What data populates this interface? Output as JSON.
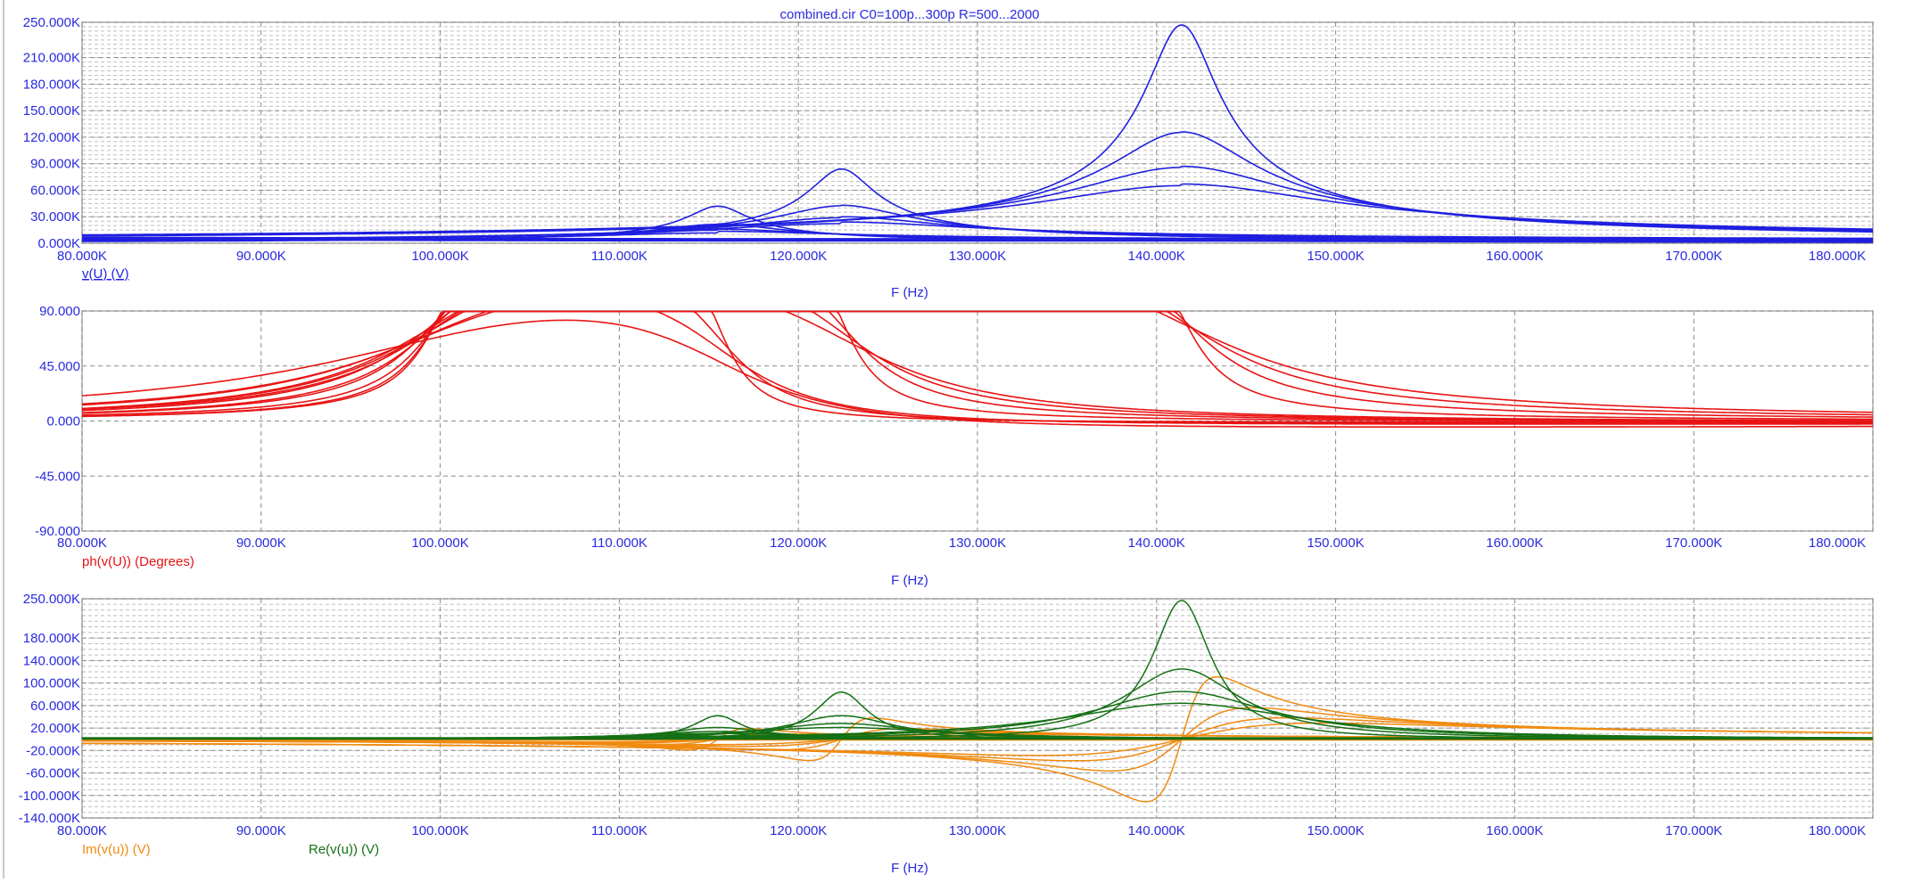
{
  "title": "combined.cir C0=100p...300p R=500...2000",
  "xlabel": "F (Hz)",
  "colors": {
    "magnitude": "#1f1fe0",
    "phase": "#e81414",
    "real": "#157015",
    "imag": "#f08a10",
    "axis_text": "#2a2adf",
    "grid": "#8a8a8a",
    "frame": "#b0b0b0"
  },
  "chart_data": [
    {
      "type": "line",
      "id": "magnitude",
      "ylabel": "v(U) (V)",
      "xlim": [
        80000,
        180000
      ],
      "ylim": [
        0,
        250000
      ],
      "x_ticks": [
        80000,
        90000,
        100000,
        110000,
        120000,
        130000,
        140000,
        150000,
        160000,
        170000,
        180000
      ],
      "x_tick_labels": [
        "80.000K",
        "90.000K",
        "100.000K",
        "110.000K",
        "120.000K",
        "130.000K",
        "140.000K",
        "150.000K",
        "160.000K",
        "170.000K",
        "180.000K"
      ],
      "y_ticks": [
        0,
        30000,
        60000,
        90000,
        120000,
        150000,
        180000,
        210000,
        250000
      ],
      "y_tick_labels": [
        "0.000K",
        "30.000K",
        "60.000K",
        "90.000K",
        "120.000K",
        "150.000K",
        "180.000K",
        "210.000K",
        "250.000K"
      ],
      "minor_y_step": 5000,
      "series_note": "resonance curves from parameter sweep",
      "resonances": [
        {
          "f0": 141400,
          "peak": 247000,
          "width": 2000
        },
        {
          "f0": 141400,
          "peak": 125000,
          "width": 4000
        },
        {
          "f0": 141400,
          "peak": 85000,
          "width": 6000
        },
        {
          "f0": 141400,
          "peak": 64000,
          "width": 8000
        },
        {
          "f0": 122400,
          "peak": 84000,
          "width": 1800
        },
        {
          "f0": 122400,
          "peak": 42000,
          "width": 3600
        },
        {
          "f0": 122400,
          "peak": 28000,
          "width": 5400
        },
        {
          "f0": 122400,
          "peak": 21000,
          "width": 7200
        },
        {
          "f0": 115500,
          "peak": 42000,
          "width": 1700
        },
        {
          "f0": 115500,
          "peak": 21000,
          "width": 3400
        },
        {
          "f0": 115500,
          "peak": 14000,
          "width": 5100
        },
        {
          "f0": 115500,
          "peak": 10500,
          "width": 6800
        }
      ]
    },
    {
      "type": "line",
      "id": "phase",
      "ylabel": "ph(v(U)) (Degrees)",
      "xlim": [
        80000,
        180000
      ],
      "ylim": [
        -90,
        90
      ],
      "x_ticks": [
        80000,
        90000,
        100000,
        110000,
        120000,
        130000,
        140000,
        150000,
        160000,
        170000,
        180000
      ],
      "x_tick_labels": [
        "80.000K",
        "90.000K",
        "100.000K",
        "110.000K",
        "120.000K",
        "130.000K",
        "140.000K",
        "150.000K",
        "160.000K",
        "170.000K",
        "180.000K"
      ],
      "y_ticks": [
        -90,
        -45,
        0,
        45,
        90
      ],
      "y_tick_labels": [
        "-90.000",
        "-45.000",
        "0.000",
        "45.000",
        "90.000"
      ],
      "series": [
        {
          "f0": 141400,
          "q": 35,
          "fa": 100000,
          "qa": 25
        },
        {
          "f0": 141400,
          "q": 18,
          "fa": 100000,
          "qa": 14
        },
        {
          "f0": 141400,
          "q": 12,
          "fa": 100000,
          "qa": 10
        },
        {
          "f0": 141400,
          "q": 9,
          "fa": 100000,
          "qa": 8
        },
        {
          "f0": 122400,
          "q": 35,
          "fa": 100000,
          "qa": 22
        },
        {
          "f0": 122400,
          "q": 18,
          "fa": 100000,
          "qa": 12
        },
        {
          "f0": 122400,
          "q": 12,
          "fa": 100000,
          "qa": 8
        },
        {
          "f0": 122400,
          "q": 9,
          "fa": 100000,
          "qa": 6
        },
        {
          "f0": 115500,
          "q": 35,
          "fa": 100000,
          "qa": 18
        },
        {
          "f0": 115500,
          "q": 18,
          "fa": 100000,
          "qa": 9
        },
        {
          "f0": 115500,
          "q": 12,
          "fa": 100000,
          "qa": 6
        },
        {
          "f0": 115500,
          "q": 9,
          "fa": 100000,
          "qa": 4
        }
      ]
    },
    {
      "type": "line",
      "id": "complex",
      "xlim": [
        80000,
        180000
      ],
      "ylim": [
        -140000,
        250000
      ],
      "x_ticks": [
        80000,
        90000,
        100000,
        110000,
        120000,
        130000,
        140000,
        150000,
        160000,
        170000,
        180000
      ],
      "x_tick_labels": [
        "80.000K",
        "90.000K",
        "100.000K",
        "110.000K",
        "120.000K",
        "130.000K",
        "140.000K",
        "150.000K",
        "160.000K",
        "170.000K",
        "180.000K"
      ],
      "y_ticks": [
        -140000,
        -100000,
        -60000,
        -20000,
        20000,
        60000,
        100000,
        140000,
        180000,
        250000
      ],
      "y_tick_labels": [
        "-140.000K",
        "-100.000K",
        "-60.000K",
        "-20.000K",
        "20.000K",
        "60.000K",
        "100.000K",
        "140.000K",
        "180.000K",
        "250.000K"
      ],
      "minor_y_step": 10000,
      "legend": [
        {
          "name": "Im(v(u)) (V)",
          "color_key": "imag"
        },
        {
          "name": "Re(v(u)) (V)",
          "color_key": "real"
        }
      ]
    }
  ]
}
